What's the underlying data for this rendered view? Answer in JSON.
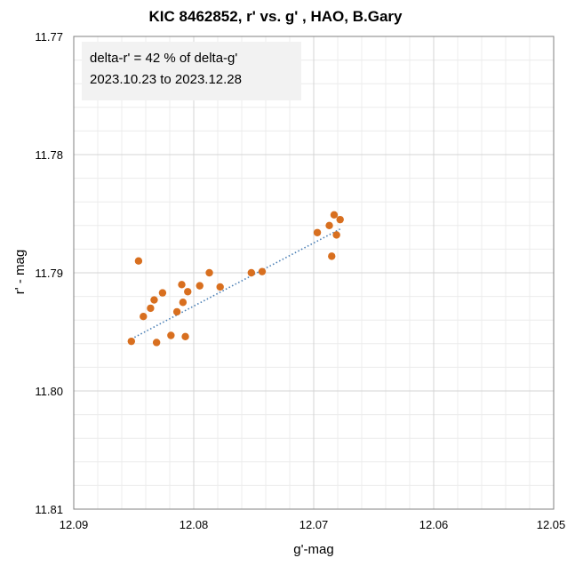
{
  "chart_data": {
    "type": "scatter",
    "title": "KIC 8462852, r' vs. g' , HAO, B.Gary",
    "xlabel": "g'-mag",
    "ylabel": "r' - mag",
    "xlim": [
      12.09,
      12.05
    ],
    "ylim": [
      11.77,
      11.81
    ],
    "x_reversed": true,
    "y_reversed": true,
    "grid": true,
    "x_ticks": [
      "12.09",
      "12.08",
      "12.07",
      "12.06",
      "12.05"
    ],
    "y_ticks": [
      "11.77",
      "11.78",
      "11.79",
      "11.80",
      "11.81"
    ],
    "annotation": [
      "delta-r' = 42 % of delta-g'",
      "2023.10.23 to 2023.12.28"
    ],
    "marker_color": "#D86F1F",
    "trendline_color": "#4A7FB5",
    "series": [
      {
        "points": [
          [
            12.0852,
            11.7958
          ],
          [
            12.0846,
            11.789
          ],
          [
            12.0842,
            11.7937
          ],
          [
            12.0836,
            11.793
          ],
          [
            12.0833,
            11.7923
          ],
          [
            12.0831,
            11.7959
          ],
          [
            12.0826,
            11.7917
          ],
          [
            12.0819,
            11.7953
          ],
          [
            12.0814,
            11.7933
          ],
          [
            12.081,
            11.791
          ],
          [
            12.0809,
            11.7925
          ],
          [
            12.0807,
            11.7954
          ],
          [
            12.0805,
            11.7916
          ],
          [
            12.0795,
            11.7911
          ],
          [
            12.0787,
            11.79
          ],
          [
            12.0778,
            11.7912
          ],
          [
            12.0752,
            11.79
          ],
          [
            12.0743,
            11.7899
          ],
          [
            12.0697,
            11.7866
          ],
          [
            12.0687,
            11.786
          ],
          [
            12.0685,
            11.7886
          ],
          [
            12.0683,
            11.7851
          ],
          [
            12.0681,
            11.7868
          ],
          [
            12.0678,
            11.7855
          ]
        ]
      }
    ],
    "trendline": [
      [
        12.0852,
        11.7956
      ],
      [
        12.0678,
        11.7863
      ]
    ]
  }
}
